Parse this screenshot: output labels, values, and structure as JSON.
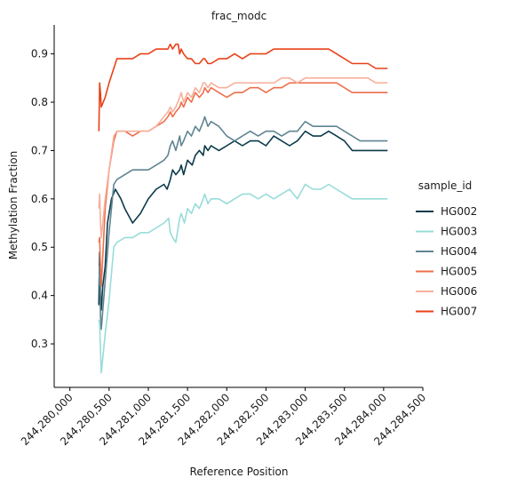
{
  "chart_data": {
    "type": "line",
    "title": "frac_modc",
    "xlabel": "Reference Position",
    "ylabel": "Methylation Fraction",
    "xlim": [
      244279800,
      244284500
    ],
    "ylim": [
      0.21,
      0.96
    ],
    "xticks": [
      244280000,
      244280500,
      244281000,
      244281500,
      244282000,
      244282500,
      244283000,
      244283500,
      244284000,
      244284500
    ],
    "xtick_labels": [
      "244,280,000",
      "244,280,500",
      "244,281,000",
      "244,281,500",
      "244,282,000",
      "244,282,500",
      "244,283,000",
      "244,283,500",
      "244,284,000",
      "244,284,500"
    ],
    "yticks": [
      0.3,
      0.4,
      0.5,
      0.6,
      0.7,
      0.8,
      0.9
    ],
    "ytick_labels": [
      "0.3",
      "0.4",
      "0.5",
      "0.6",
      "0.7",
      "0.8",
      "0.9"
    ],
    "grid": false,
    "legend": {
      "title": "sample_id",
      "placement": "right"
    },
    "series": [
      {
        "name": "HG002",
        "color": "#0b3a4a",
        "x": [
          244280370,
          244280380,
          244280390,
          244280400,
          244280420,
          244280450,
          244280480,
          244280530,
          244280580,
          244280650,
          244280700,
          244280800,
          244280900,
          244281000,
          244281100,
          244281200,
          244281240,
          244281280,
          244281310,
          244281350,
          244281400,
          244281420,
          244281450,
          244281500,
          244281560,
          244281600,
          244281650,
          244281700,
          244281720,
          244281760,
          244281800,
          244281900,
          244282000,
          244282100,
          244282200,
          244282300,
          244282400,
          244282500,
          244282600,
          244282700,
          244282800,
          244282900,
          244283000,
          244283100,
          244283200,
          244283300,
          244283400,
          244283500,
          244283600,
          244283700,
          244283800,
          244283900,
          244284000,
          244284050
        ],
        "y": [
          0.38,
          0.49,
          0.4,
          0.37,
          0.42,
          0.46,
          0.55,
          0.6,
          0.62,
          0.6,
          0.58,
          0.55,
          0.57,
          0.6,
          0.62,
          0.63,
          0.62,
          0.64,
          0.66,
          0.65,
          0.66,
          0.67,
          0.65,
          0.68,
          0.67,
          0.69,
          0.7,
          0.69,
          0.71,
          0.7,
          0.71,
          0.7,
          0.71,
          0.72,
          0.71,
          0.72,
          0.72,
          0.71,
          0.73,
          0.72,
          0.71,
          0.72,
          0.74,
          0.73,
          0.73,
          0.74,
          0.73,
          0.72,
          0.7,
          0.7,
          0.7,
          0.7,
          0.7,
          0.7
        ]
      },
      {
        "name": "HG003",
        "color": "#98dcd9",
        "x": [
          244280370,
          244280380,
          244280390,
          244280400,
          244280450,
          244280500,
          244280560,
          244280600,
          244280700,
          244280800,
          244280900,
          244281000,
          244281100,
          244281200,
          244281260,
          244281280,
          244281310,
          244281350,
          244281400,
          244281420,
          244281460,
          244281500,
          244281550,
          244281600,
          244281650,
          244281700,
          244281720,
          244281760,
          244281800,
          244281900,
          244282000,
          244282100,
          244282200,
          244282300,
          244282400,
          244282500,
          244282600,
          244282700,
          244282800,
          244282900,
          244283000,
          244283100,
          244283200,
          244283300,
          244283400,
          244283500,
          244283600,
          244283700,
          244283800,
          244283900,
          244284000,
          244284050
        ],
        "y": [
          0.35,
          0.34,
          0.29,
          0.24,
          0.32,
          0.39,
          0.5,
          0.51,
          0.52,
          0.52,
          0.53,
          0.53,
          0.54,
          0.55,
          0.56,
          0.53,
          0.52,
          0.51,
          0.56,
          0.57,
          0.55,
          0.58,
          0.57,
          0.59,
          0.58,
          0.6,
          0.61,
          0.59,
          0.6,
          0.6,
          0.59,
          0.6,
          0.61,
          0.61,
          0.6,
          0.61,
          0.6,
          0.61,
          0.62,
          0.6,
          0.63,
          0.62,
          0.62,
          0.63,
          0.62,
          0.61,
          0.6,
          0.6,
          0.6,
          0.6,
          0.6,
          0.6
        ]
      },
      {
        "name": "HG004",
        "color": "#5f8592",
        "x": [
          244280370,
          244280380,
          244280390,
          244280400,
          244280450,
          244280500,
          244280560,
          244280600,
          244280700,
          244280800,
          244280900,
          244281000,
          244281100,
          244281200,
          244281250,
          244281280,
          244281310,
          244281350,
          244281400,
          244281420,
          244281450,
          244281500,
          244281550,
          244281600,
          244281650,
          244281700,
          244281720,
          244281760,
          244281800,
          244281900,
          244282000,
          244282100,
          244282200,
          244282300,
          244282400,
          244282500,
          244282600,
          244282700,
          244282800,
          244282900,
          244283000,
          244283100,
          244283200,
          244283300,
          244283400,
          244283500,
          244283600,
          244283700,
          244283800,
          244283900,
          244284000,
          244284050
        ],
        "y": [
          0.42,
          0.46,
          0.36,
          0.33,
          0.43,
          0.53,
          0.63,
          0.64,
          0.65,
          0.66,
          0.66,
          0.66,
          0.67,
          0.68,
          0.69,
          0.71,
          0.72,
          0.7,
          0.73,
          0.71,
          0.72,
          0.74,
          0.73,
          0.75,
          0.74,
          0.76,
          0.77,
          0.75,
          0.76,
          0.75,
          0.73,
          0.72,
          0.73,
          0.74,
          0.73,
          0.74,
          0.74,
          0.73,
          0.74,
          0.74,
          0.76,
          0.75,
          0.75,
          0.75,
          0.75,
          0.74,
          0.73,
          0.72,
          0.72,
          0.72,
          0.72,
          0.72
        ]
      },
      {
        "name": "HG005",
        "color": "#ed6f4c",
        "x": [
          244280370,
          244280380,
          244280390,
          244280400,
          244280450,
          244280500,
          244280560,
          244280600,
          244280700,
          244280800,
          244280900,
          244281000,
          244281100,
          244281200,
          244281250,
          244281280,
          244281310,
          244281350,
          244281400,
          244281420,
          244281450,
          244281500,
          244281550,
          244281600,
          244281650,
          244281700,
          244281720,
          244281760,
          244281800,
          244281900,
          244282000,
          244282100,
          244282200,
          244282300,
          244282400,
          244282500,
          244282600,
          244282700,
          244282800,
          244282900,
          244283000,
          244283100,
          244283200,
          244283300,
          244283400,
          244283500,
          244283600,
          244283700,
          244283800,
          244283900,
          244284000,
          244284050
        ],
        "y": [
          0.51,
          0.52,
          0.46,
          0.42,
          0.58,
          0.66,
          0.72,
          0.74,
          0.74,
          0.73,
          0.74,
          0.74,
          0.75,
          0.76,
          0.77,
          0.78,
          0.77,
          0.78,
          0.79,
          0.8,
          0.79,
          0.81,
          0.8,
          0.82,
          0.81,
          0.82,
          0.83,
          0.82,
          0.83,
          0.82,
          0.81,
          0.82,
          0.82,
          0.83,
          0.83,
          0.82,
          0.83,
          0.83,
          0.84,
          0.84,
          0.84,
          0.84,
          0.84,
          0.84,
          0.84,
          0.83,
          0.82,
          0.82,
          0.82,
          0.82,
          0.82,
          0.82
        ]
      },
      {
        "name": "HG006",
        "color": "#f7b09c",
        "x": [
          244280370,
          244280380,
          244280390,
          244280400,
          244280450,
          244280500,
          244280560,
          244280600,
          244280700,
          244280800,
          244280900,
          244281000,
          244281100,
          244281200,
          244281250,
          244281280,
          244281310,
          244281350,
          244281400,
          244281420,
          244281450,
          244281500,
          244281550,
          244281600,
          244281650,
          244281700,
          244281720,
          244281760,
          244281800,
          244281900,
          244282000,
          244282100,
          244282200,
          244282300,
          244282400,
          244282500,
          244282600,
          244282700,
          244282800,
          244282900,
          244283000,
          244283100,
          244283200,
          244283300,
          244283400,
          244283500,
          244283600,
          244283700,
          244283800,
          244283900,
          244284000,
          244284050
        ],
        "y": [
          0.58,
          0.61,
          0.55,
          0.52,
          0.6,
          0.66,
          0.73,
          0.74,
          0.74,
          0.74,
          0.74,
          0.74,
          0.75,
          0.77,
          0.78,
          0.79,
          0.78,
          0.79,
          0.81,
          0.82,
          0.8,
          0.82,
          0.81,
          0.83,
          0.82,
          0.84,
          0.84,
          0.83,
          0.84,
          0.83,
          0.83,
          0.84,
          0.84,
          0.84,
          0.84,
          0.84,
          0.84,
          0.85,
          0.85,
          0.84,
          0.85,
          0.85,
          0.85,
          0.85,
          0.85,
          0.85,
          0.85,
          0.85,
          0.85,
          0.84,
          0.84,
          0.84
        ]
      },
      {
        "name": "HG007",
        "color": "#e94218",
        "x": [
          244280370,
          244280380,
          244280390,
          244280400,
          244280450,
          244280500,
          244280560,
          244280600,
          244280700,
          244280800,
          244280900,
          244281000,
          244281100,
          244281200,
          244281250,
          244281280,
          244281310,
          244281350,
          244281380,
          244281400,
          244281420,
          244281450,
          244281500,
          244281550,
          244281600,
          244281650,
          244281700,
          244281720,
          244281760,
          244281800,
          244281900,
          244282000,
          244282100,
          244282200,
          244282300,
          244282400,
          244282500,
          244282600,
          244282700,
          244282800,
          244282900,
          244283000,
          244283100,
          244283200,
          244283300,
          244283400,
          244283500,
          244283600,
          244283700,
          244283800,
          244283900,
          244284000,
          244284050
        ],
        "y": [
          0.74,
          0.84,
          0.82,
          0.79,
          0.81,
          0.84,
          0.87,
          0.89,
          0.89,
          0.89,
          0.9,
          0.9,
          0.91,
          0.91,
          0.91,
          0.92,
          0.91,
          0.92,
          0.92,
          0.9,
          0.91,
          0.9,
          0.89,
          0.89,
          0.88,
          0.88,
          0.89,
          0.89,
          0.88,
          0.88,
          0.89,
          0.89,
          0.9,
          0.89,
          0.9,
          0.9,
          0.9,
          0.91,
          0.91,
          0.91,
          0.91,
          0.91,
          0.91,
          0.91,
          0.91,
          0.9,
          0.89,
          0.88,
          0.88,
          0.88,
          0.87,
          0.87,
          0.87
        ]
      }
    ]
  }
}
